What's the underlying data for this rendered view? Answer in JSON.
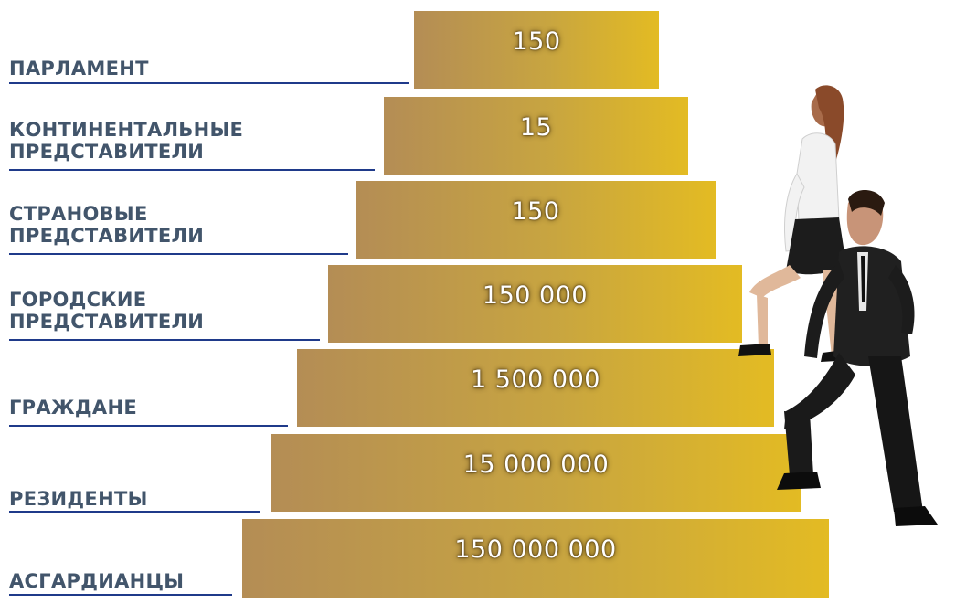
{
  "colors": {
    "label_text": "#42556b",
    "underline": "#1f3a8a",
    "bar_gradient_start": "#b48d55",
    "bar_gradient_end": "#e3bb23",
    "value_text": "#ffffff"
  },
  "tiers": [
    {
      "label_lines": [
        "ПАРЛАМЕНТ"
      ],
      "value": "150"
    },
    {
      "label_lines": [
        "КОНТИНЕНТАЛЬНЫЕ",
        "ПРЕДСТАВИТЕЛИ"
      ],
      "value": "15"
    },
    {
      "label_lines": [
        "СТРАНОВЫЕ",
        "ПРЕДСТАВИТЕЛИ"
      ],
      "value": "150"
    },
    {
      "label_lines": [
        "ГОРОДСКИЕ",
        "ПРЕДСТАВИТЕЛИ"
      ],
      "value": "150 000"
    },
    {
      "label_lines": [
        "ГРАЖДАНЕ"
      ],
      "value": "1 500 000"
    },
    {
      "label_lines": [
        "РЕЗИДЕНТЫ"
      ],
      "value": "15 000 000"
    },
    {
      "label_lines": [
        "АСГАРДИАНЦЫ"
      ],
      "value": "150 000 000"
    }
  ]
}
